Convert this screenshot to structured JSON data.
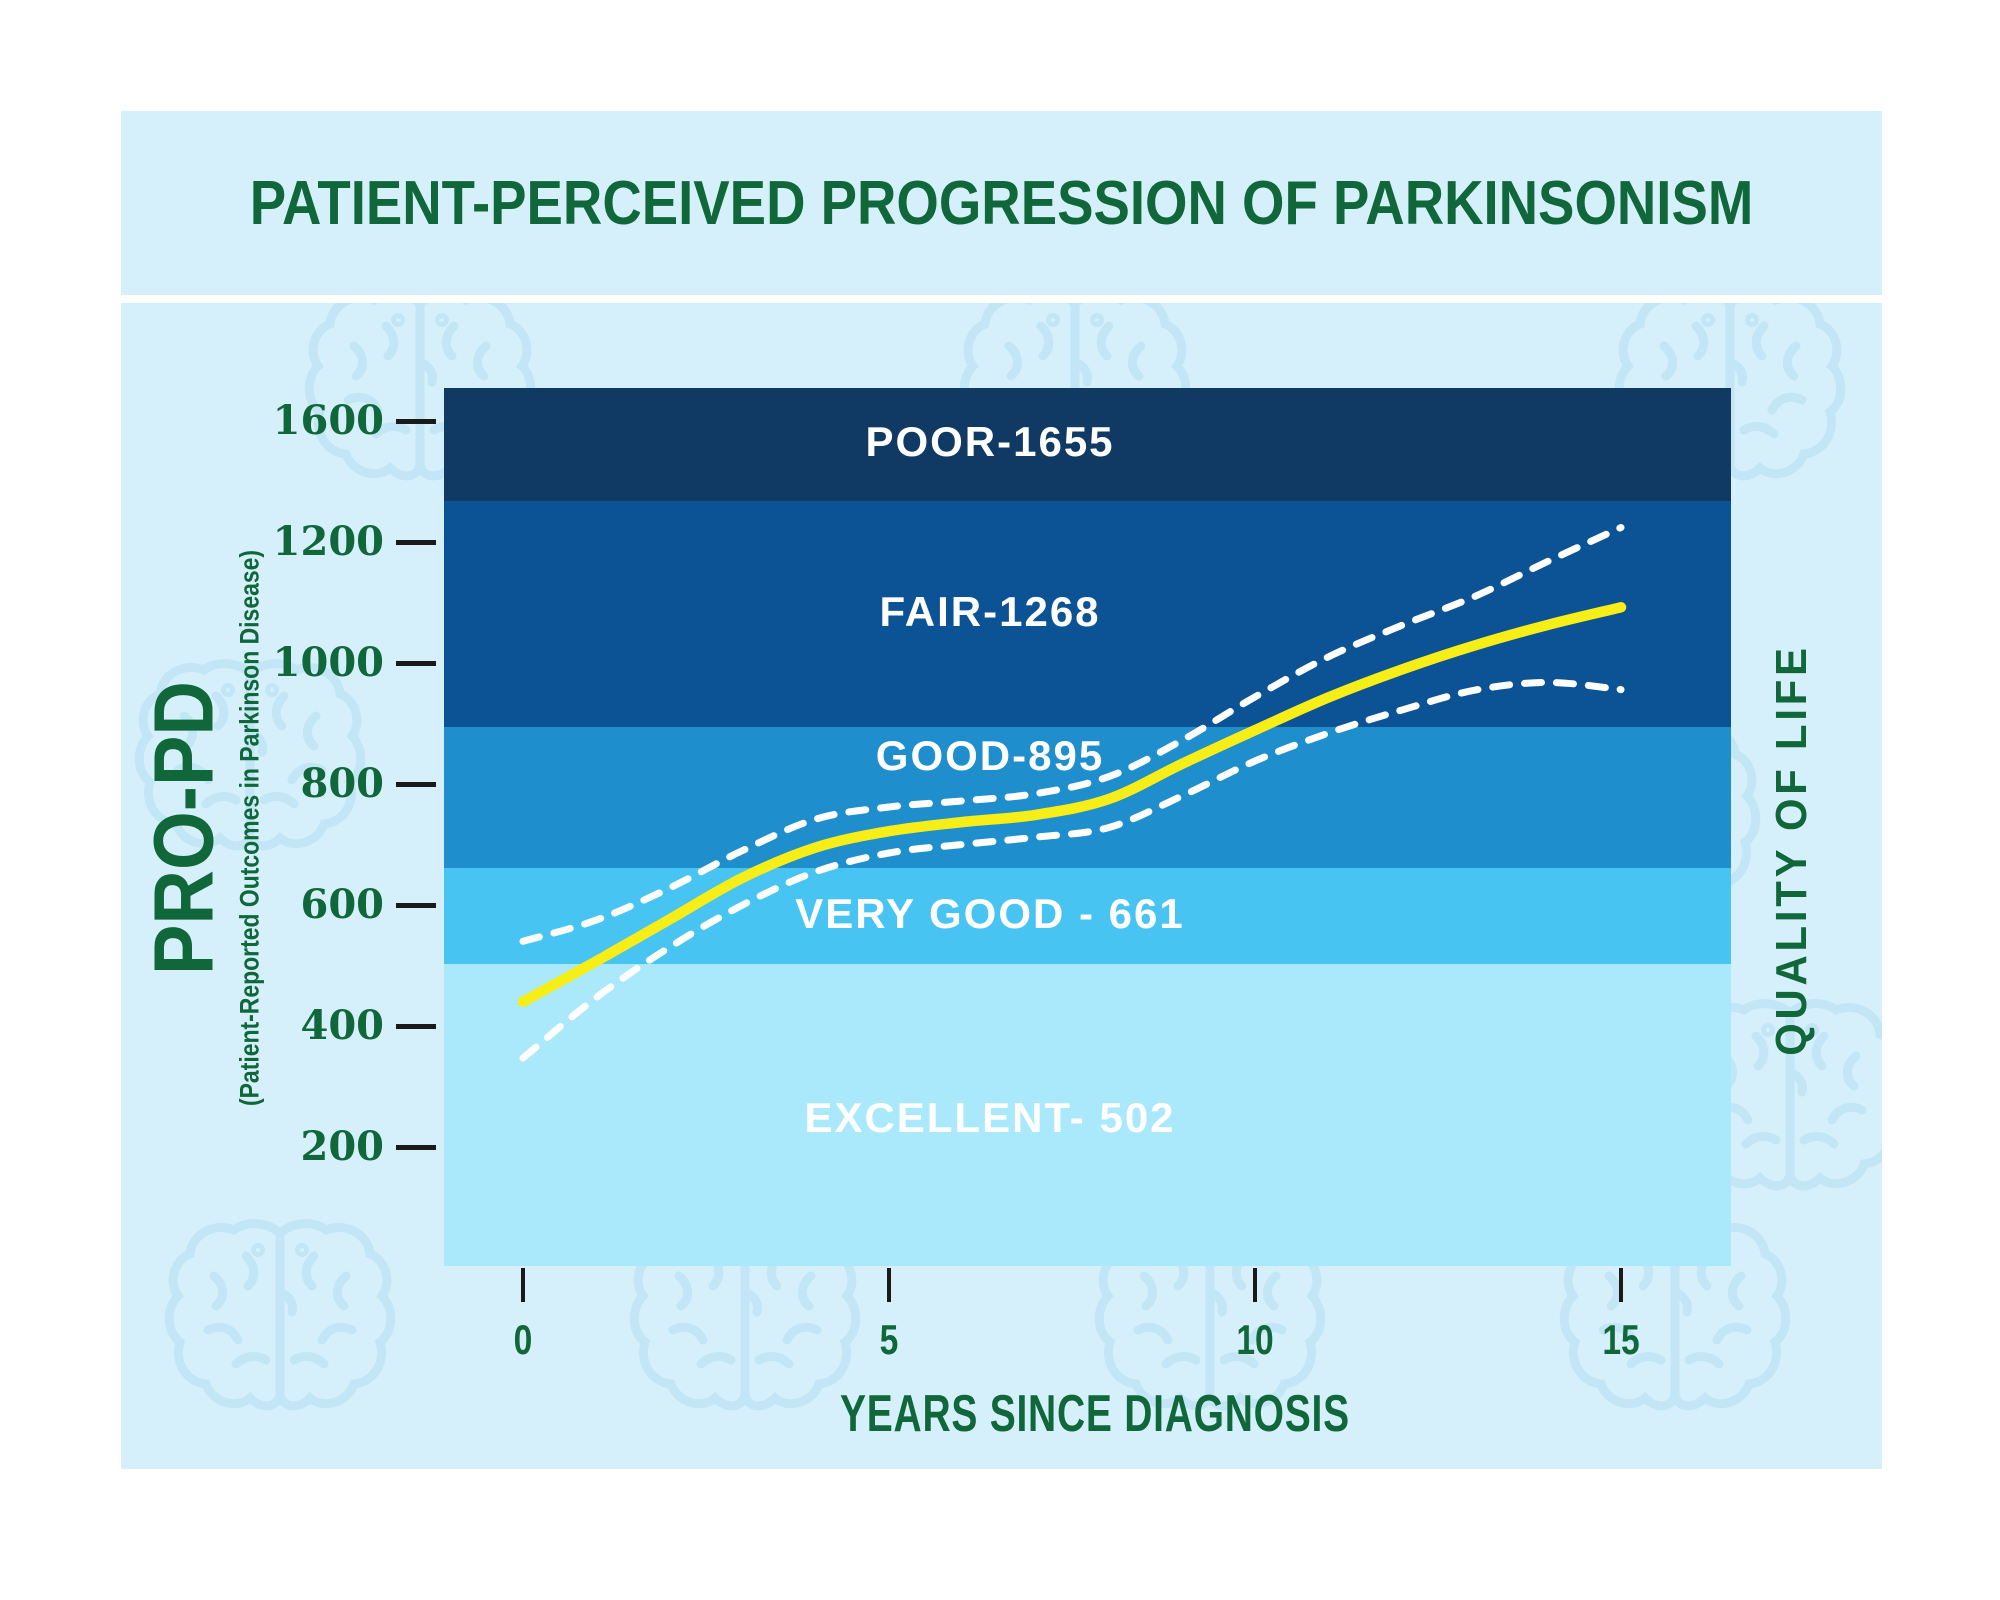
{
  "header": {
    "title": "PATIENT-PERCEIVED PROGRESSION OF PARKINSONISM"
  },
  "y_axis": {
    "title": "PRO-PD",
    "subtitle": "(Patient-Reported Outcomes in Parkinson Disease)",
    "ticks": [
      "200",
      "400",
      "600",
      "800",
      "1000",
      "1200",
      "1600"
    ]
  },
  "x_axis": {
    "title": "YEARS SINCE DIAGNOSIS",
    "ticks": [
      "0",
      "5",
      "10",
      "15"
    ]
  },
  "right_axis": {
    "title": "QUALITY OF LIFE"
  },
  "chart_data": {
    "type": "line",
    "title": "PATIENT-PERCEIVED PROGRESSION OF PARKINSONISM",
    "xlabel": "YEARS SINCE DIAGNOSIS",
    "ylabel": "PRO-PD (Patient-Reported Outcomes in Parkinson Disease)",
    "right_label": "QUALITY OF LIFE",
    "x_range": [
      0,
      15
    ],
    "x_tick_years": [
      0,
      5,
      10,
      15
    ],
    "y_tick_values": [
      200,
      400,
      600,
      800,
      1000,
      1200,
      1600
    ],
    "grid": false,
    "bands": [
      {
        "id": "poor",
        "label": "POOR-1655",
        "quality": "POOR",
        "score": 1655,
        "value_from": 1268,
        "value_to": null,
        "color": "#103A64",
        "label_dy": 0
      },
      {
        "id": "fair",
        "label": "FAIR-1268",
        "quality": "FAIR",
        "score": 1268,
        "value_from": 895,
        "value_to": 1268,
        "color": "#0B5394",
        "label_dy": 0
      },
      {
        "id": "good",
        "label": "GOOD-895",
        "quality": "GOOD",
        "score": 895,
        "value_from": 661,
        "value_to": 895,
        "color": "#1F8ECD",
        "label_dy": -39
      },
      {
        "id": "very-good",
        "label": "VERY GOOD - 661",
        "quality": "VERY GOOD",
        "score": 661,
        "value_from": 502,
        "value_to": 661,
        "color": "#47C4F2",
        "label_dy": 0
      },
      {
        "id": "excellent",
        "label": "EXCELLENT- 502",
        "quality": "EXCELLENT",
        "score": 502,
        "value_from": null,
        "value_to": 502,
        "color": "#A9E9FB",
        "label_dy": 5
      }
    ],
    "series": [
      {
        "id": "mean-line",
        "name": "Mean PRO-PD score",
        "style": "solid",
        "color": "#F7EE18",
        "points": [
          [
            0,
            440
          ],
          [
            1,
            507
          ],
          [
            2,
            576
          ],
          [
            3,
            645
          ],
          [
            4,
            695
          ],
          [
            5,
            722
          ],
          [
            6,
            737
          ],
          [
            7,
            749
          ],
          [
            8,
            775
          ],
          [
            9,
            833
          ],
          [
            10,
            889
          ],
          [
            11,
            943
          ],
          [
            12,
            989
          ],
          [
            13,
            1029
          ],
          [
            14,
            1063
          ],
          [
            15,
            1092
          ]
        ]
      },
      {
        "id": "upper-ci-line",
        "name": "Upper confidence band",
        "style": "dashed",
        "color": "#FFFFFF",
        "points": [
          [
            0,
            540
          ],
          [
            1,
            575
          ],
          [
            2,
            628
          ],
          [
            3,
            690
          ],
          [
            4,
            742
          ],
          [
            5,
            762
          ],
          [
            6,
            772
          ],
          [
            7,
            784
          ],
          [
            8,
            812
          ],
          [
            9,
            872
          ],
          [
            10,
            944
          ],
          [
            11,
            1010
          ],
          [
            12,
            1062
          ],
          [
            13,
            1110
          ],
          [
            14,
            1168
          ],
          [
            15,
            1224
          ]
        ]
      },
      {
        "id": "lower-ci-line",
        "name": "Lower confidence band",
        "style": "dashed",
        "color": "#FFFFFF",
        "points": [
          [
            0,
            347
          ],
          [
            1,
            447
          ],
          [
            2,
            530
          ],
          [
            3,
            600
          ],
          [
            4,
            655
          ],
          [
            5,
            686
          ],
          [
            6,
            700
          ],
          [
            7,
            712
          ],
          [
            8,
            728
          ],
          [
            9,
            780
          ],
          [
            10,
            838
          ],
          [
            11,
            884
          ],
          [
            12,
            922
          ],
          [
            13,
            955
          ],
          [
            14,
            968
          ],
          [
            15,
            956
          ]
        ]
      }
    ]
  },
  "colors": {
    "page": "#FFFFFF",
    "panel": "#D5F0FB",
    "text_green": "#0F673A",
    "tick": "#1A1A1A",
    "watermark": "#C2E6F5",
    "line_yellow": "#F7EE18",
    "ci_white": "#FFFFFF"
  }
}
